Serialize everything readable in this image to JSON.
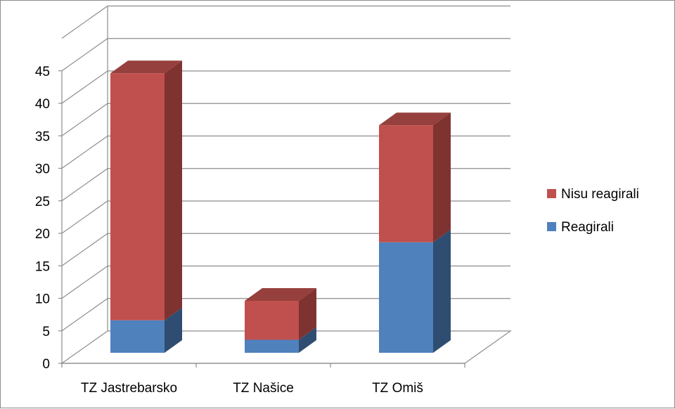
{
  "chart_data": {
    "type": "bar",
    "stacked": true,
    "three_d": true,
    "title": "",
    "xlabel": "",
    "ylabel": "",
    "categories": [
      "TZ Jastrebarsko",
      "TZ Našice",
      "TZ Omiš"
    ],
    "series": [
      {
        "name": "Reagirali",
        "values": [
          5,
          2,
          17
        ],
        "color": "#4f81bd",
        "side_color": "#2f4d71",
        "top_color": "#3c6390"
      },
      {
        "name": "Nisu reagirali",
        "values": [
          38,
          6,
          18
        ],
        "color": "#c0504d",
        "side_color": "#7f3331",
        "top_color": "#96403d"
      }
    ],
    "ylim": [
      0,
      45
    ],
    "yticks": [
      0,
      5,
      10,
      15,
      20,
      25,
      30,
      35,
      40,
      45
    ],
    "grid": true,
    "legend_position": "right",
    "legend_order": [
      "Nisu reagirali",
      "Reagirali"
    ]
  }
}
